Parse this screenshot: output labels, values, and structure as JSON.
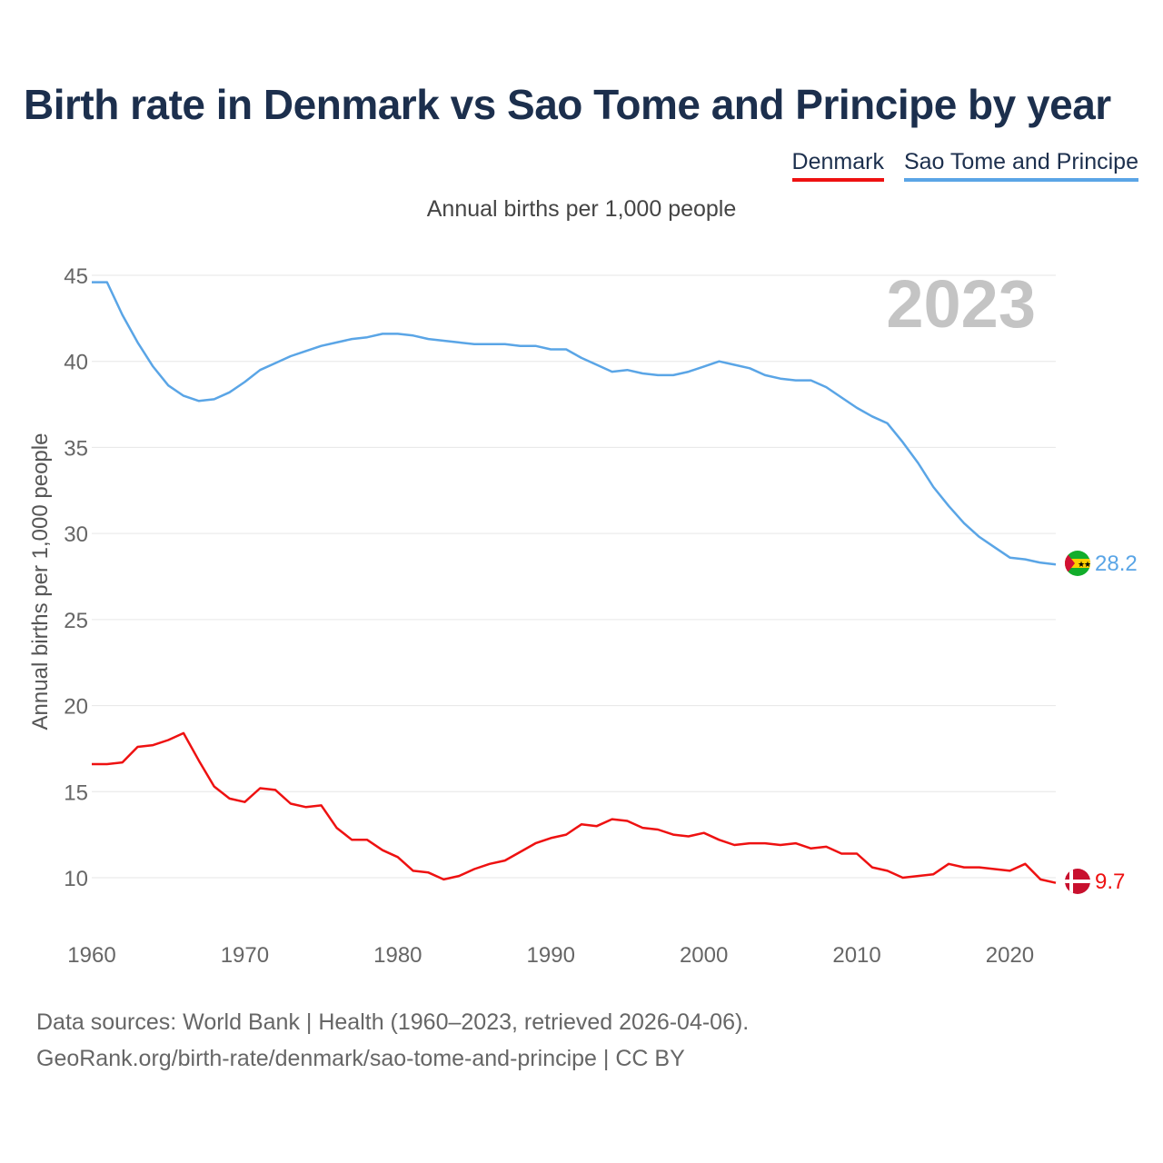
{
  "title": "Birth rate in Denmark vs Sao Tome and Principe by year",
  "legend": {
    "denmark": "Denmark",
    "sao_tome": "Sao Tome and Principe"
  },
  "subtitle": "Annual births per 1,000 people",
  "year_label": "2023",
  "footer": {
    "line1": "Data sources: World Bank | Health (1960–2023, retrieved 2026-04-06).",
    "line2": "GeoRank.org/birth-rate/denmark/sao-tome-and-principe | CC BY"
  },
  "colors": {
    "denmark": "#ee1111",
    "sao_tome": "#5aa5e6",
    "title": "#1c2f4d",
    "year": "#c4c4c4"
  },
  "chart_data": {
    "type": "line",
    "title": "Birth rate in Denmark vs Sao Tome and Principe by year",
    "ylabel": "Annual births per 1,000 people",
    "xlabel": "",
    "xlim": [
      1960,
      2023
    ],
    "ylim": [
      7.5,
      45
    ],
    "yticks": [
      10,
      15,
      20,
      25,
      30,
      35,
      40,
      45
    ],
    "xticks": [
      1960,
      1970,
      1980,
      1990,
      2000,
      2010,
      2020
    ],
    "x": [
      1960,
      1961,
      1962,
      1963,
      1964,
      1965,
      1966,
      1967,
      1968,
      1969,
      1970,
      1971,
      1972,
      1973,
      1974,
      1975,
      1976,
      1977,
      1978,
      1979,
      1980,
      1981,
      1982,
      1983,
      1984,
      1985,
      1986,
      1987,
      1988,
      1989,
      1990,
      1991,
      1992,
      1993,
      1994,
      1995,
      1996,
      1997,
      1998,
      1999,
      2000,
      2001,
      2002,
      2003,
      2004,
      2005,
      2006,
      2007,
      2008,
      2009,
      2010,
      2011,
      2012,
      2013,
      2014,
      2015,
      2016,
      2017,
      2018,
      2019,
      2020,
      2021,
      2022,
      2023
    ],
    "series": [
      {
        "name": "Denmark",
        "color": "#ee1111",
        "end_label": "9.7",
        "values": [
          16.6,
          16.6,
          16.7,
          17.6,
          17.7,
          18.0,
          18.4,
          16.8,
          15.3,
          14.6,
          14.4,
          15.2,
          15.1,
          14.3,
          14.1,
          14.2,
          12.9,
          12.2,
          12.2,
          11.6,
          11.2,
          10.4,
          10.3,
          9.9,
          10.1,
          10.5,
          10.8,
          11.0,
          11.5,
          12.0,
          12.3,
          12.5,
          13.1,
          13.0,
          13.4,
          13.3,
          12.9,
          12.8,
          12.5,
          12.4,
          12.6,
          12.2,
          11.9,
          12.0,
          12.0,
          11.9,
          12.0,
          11.7,
          11.8,
          11.4,
          11.4,
          10.6,
          10.4,
          10.0,
          10.1,
          10.2,
          10.8,
          10.6,
          10.6,
          10.5,
          10.4,
          10.8,
          9.9,
          9.7
        ]
      },
      {
        "name": "Sao Tome and Principe",
        "color": "#5aa5e6",
        "end_label": "28.2",
        "values": [
          44.6,
          44.6,
          42.7,
          41.1,
          39.7,
          38.6,
          38.0,
          37.7,
          37.8,
          38.2,
          38.8,
          39.5,
          39.9,
          40.3,
          40.6,
          40.9,
          41.1,
          41.3,
          41.4,
          41.6,
          41.6,
          41.5,
          41.3,
          41.2,
          41.1,
          41.0,
          41.0,
          41.0,
          40.9,
          40.9,
          40.7,
          40.7,
          40.2,
          39.8,
          39.4,
          39.5,
          39.3,
          39.2,
          39.2,
          39.4,
          39.7,
          40.0,
          39.8,
          39.6,
          39.2,
          39.0,
          38.9,
          38.9,
          38.5,
          37.9,
          37.3,
          36.8,
          36.4,
          35.3,
          34.1,
          32.7,
          31.6,
          30.6,
          29.8,
          29.2,
          28.6,
          28.5,
          28.3,
          28.2
        ]
      }
    ]
  }
}
